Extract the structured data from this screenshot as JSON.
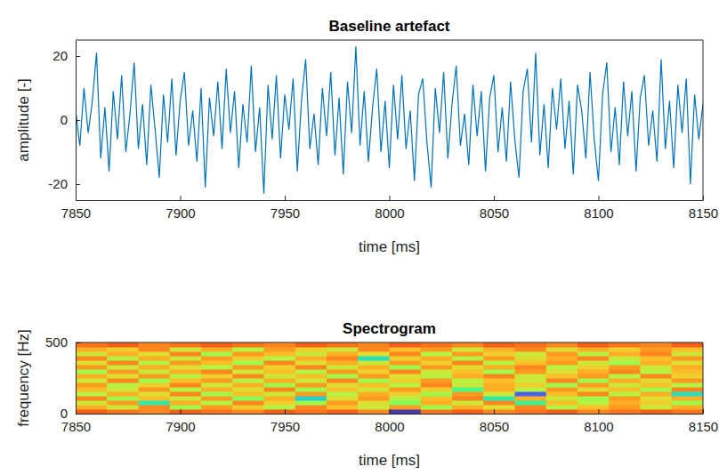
{
  "chart_data": [
    {
      "type": "line",
      "title": "Baseline artefact",
      "x_label": "time [ms]",
      "y_label": "amplitude [-]",
      "x": [
        7850,
        7852,
        7854,
        7856,
        7858,
        7860,
        7862,
        7864,
        7866,
        7868,
        7870,
        7872,
        7874,
        7876,
        7878,
        7880,
        7882,
        7884,
        7886,
        7888,
        7890,
        7892,
        7894,
        7896,
        7898,
        7900,
        7902,
        7904,
        7906,
        7908,
        7910,
        7912,
        7914,
        7916,
        7918,
        7920,
        7922,
        7924,
        7926,
        7928,
        7930,
        7932,
        7934,
        7936,
        7938,
        7940,
        7942,
        7944,
        7946,
        7948,
        7950,
        7952,
        7954,
        7956,
        7958,
        7960,
        7962,
        7964,
        7966,
        7968,
        7970,
        7972,
        7974,
        7976,
        7978,
        7980,
        7982,
        7984,
        7986,
        7988,
        7990,
        7992,
        7994,
        7996,
        7998,
        8000,
        8002,
        8004,
        8006,
        8008,
        8010,
        8012,
        8014,
        8016,
        8018,
        8020,
        8022,
        8024,
        8026,
        8028,
        8030,
        8032,
        8034,
        8036,
        8038,
        8040,
        8042,
        8044,
        8046,
        8048,
        8050,
        8052,
        8054,
        8056,
        8058,
        8060,
        8062,
        8064,
        8066,
        8068,
        8070,
        8072,
        8074,
        8076,
        8078,
        8080,
        8082,
        8084,
        8086,
        8088,
        8090,
        8092,
        8094,
        8096,
        8098,
        8100,
        8102,
        8104,
        8106,
        8108,
        8110,
        8112,
        8114,
        8116,
        8118,
        8120,
        8122,
        8124,
        8126,
        8128,
        8130,
        8132,
        8134,
        8136,
        8138,
        8140,
        8142,
        8144,
        8146,
        8148,
        8150
      ],
      "series": [
        {
          "color": "#0072bd",
          "values": [
            3,
            -8,
            10,
            -4,
            6,
            21,
            -12,
            4,
            -16,
            9,
            -6,
            14,
            -10,
            2,
            18,
            -9,
            5,
            -14,
            11,
            -3,
            -18,
            8,
            -7,
            13,
            -11,
            6,
            15,
            -8,
            3,
            -13,
            10,
            -21,
            7,
            -5,
            12,
            -9,
            16,
            -4,
            9,
            -15,
            5,
            -7,
            17,
            -10,
            4,
            -23,
            11,
            -6,
            14,
            -12,
            8,
            -3,
            13,
            -16,
            6,
            19,
            -9,
            2,
            -14,
            10,
            -5,
            15,
            -11,
            7,
            -17,
            12,
            -4,
            23,
            -8,
            9,
            -13,
            4,
            16,
            -10,
            6,
            -15,
            11,
            -6,
            14,
            -9,
            3,
            -19,
            8,
            13,
            -7,
            -21,
            10,
            -4,
            15,
            -12,
            5,
            17,
            -8,
            2,
            -14,
            11,
            -5,
            9,
            -16,
            7,
            14,
            -10,
            4,
            -13,
            12,
            -6,
            -18,
            9,
            16,
            -7,
            21,
            -11,
            5,
            -15,
            10,
            -3,
            13,
            -9,
            6,
            -17,
            11,
            3,
            -12,
            15,
            -6,
            -19,
            8,
            18,
            -10,
            4,
            -14,
            12,
            -5,
            9,
            -16,
            7,
            14,
            -8,
            3,
            -13,
            19,
            -9,
            6,
            -15,
            11,
            -4,
            13,
            -20,
            8,
            -6,
            5
          ]
        }
      ],
      "xlim": [
        7850,
        8150
      ],
      "ylim": [
        -25,
        25
      ],
      "xticks": [
        7850,
        7900,
        7950,
        8000,
        8050,
        8100,
        8150
      ],
      "yticks": [
        -20,
        0,
        20
      ],
      "grid": false
    },
    {
      "type": "heatmap",
      "title": "Spectrogram",
      "x_label": "time [ms]",
      "y_label": "frequency [Hz]",
      "x_edges": [
        7850,
        7865,
        7880,
        7895,
        7910,
        7925,
        7940,
        7955,
        7970,
        7985,
        8000,
        8015,
        8030,
        8045,
        8060,
        8075,
        8090,
        8105,
        8120,
        8135,
        8150
      ],
      "y_edges": [
        0,
        31.25,
        62.5,
        93.75,
        125,
        156.25,
        187.5,
        218.75,
        250,
        281.25,
        312.5,
        343.75,
        375,
        406.25,
        437.5,
        468.75,
        500
      ],
      "cells": [
        [
          0.88,
          0.87,
          0.86,
          0.88,
          0.87,
          0.86,
          0.88,
          0.87,
          0.88,
          0.86,
          0.62,
          0.87,
          0.88,
          0.86,
          0.87,
          0.88,
          0.86,
          0.87,
          0.88,
          0.87
        ],
        [
          0.84,
          0.8,
          0.86,
          0.78,
          0.85,
          0.82,
          0.79,
          0.86,
          0.83,
          0.8,
          0.85,
          0.78,
          0.84,
          0.81,
          0.86,
          0.79,
          0.83,
          0.85,
          0.8,
          0.84
        ],
        [
          0.8,
          0.85,
          0.72,
          0.84,
          0.79,
          0.86,
          0.82,
          0.78,
          0.85,
          0.81,
          0.77,
          0.84,
          0.8,
          0.86,
          0.73,
          0.83,
          0.79,
          0.84,
          0.82,
          0.78
        ],
        [
          0.86,
          0.78,
          0.83,
          0.8,
          0.85,
          0.77,
          0.84,
          0.7,
          0.81,
          0.85,
          0.79,
          0.83,
          0.86,
          0.72,
          0.84,
          0.8,
          0.78,
          0.85,
          0.81,
          0.84
        ],
        [
          0.79,
          0.84,
          0.81,
          0.86,
          0.78,
          0.83,
          0.8,
          0.85,
          0.79,
          0.84,
          0.82,
          0.78,
          0.85,
          0.8,
          0.64,
          0.83,
          0.86,
          0.79,
          0.84,
          0.71
        ],
        [
          0.83,
          0.8,
          0.85,
          0.79,
          0.84,
          0.81,
          0.86,
          0.78,
          0.83,
          0.8,
          0.85,
          0.82,
          0.74,
          0.84,
          0.79,
          0.85,
          0.81,
          0.83,
          0.78,
          0.86
        ],
        [
          0.85,
          0.79,
          0.82,
          0.86,
          0.8,
          0.84,
          0.78,
          0.85,
          0.81,
          0.83,
          0.79,
          0.86,
          0.8,
          0.84,
          0.82,
          0.78,
          0.85,
          0.8,
          0.83,
          0.79
        ],
        [
          0.8,
          0.86,
          0.78,
          0.83,
          0.85,
          0.79,
          0.84,
          0.8,
          0.86,
          0.78,
          0.82,
          0.85,
          0.79,
          0.83,
          0.8,
          0.86,
          0.78,
          0.84,
          0.81,
          0.85
        ],
        [
          0.84,
          0.81,
          0.85,
          0.79,
          0.82,
          0.86,
          0.8,
          0.83,
          0.78,
          0.85,
          0.81,
          0.79,
          0.84,
          0.86,
          0.8,
          0.83,
          0.85,
          0.79,
          0.86,
          0.82
        ],
        [
          0.78,
          0.85,
          0.8,
          0.84,
          0.86,
          0.8,
          0.83,
          0.79,
          0.85,
          0.82,
          0.86,
          0.8,
          0.83,
          0.78,
          0.85,
          0.81,
          0.84,
          0.86,
          0.79,
          0.83
        ],
        [
          0.85,
          0.8,
          0.84,
          0.81,
          0.79,
          0.85,
          0.82,
          0.86,
          0.8,
          0.84,
          0.78,
          0.85,
          0.81,
          0.84,
          0.86,
          0.79,
          0.82,
          0.85,
          0.8,
          0.84
        ],
        [
          0.81,
          0.86,
          0.79,
          0.85,
          0.83,
          0.78,
          0.86,
          0.81,
          0.84,
          0.8,
          0.85,
          0.82,
          0.86,
          0.79,
          0.83,
          0.85,
          0.8,
          0.78,
          0.84,
          0.81
        ],
        [
          0.86,
          0.79,
          0.84,
          0.8,
          0.85,
          0.82,
          0.79,
          0.84,
          0.86,
          0.71,
          0.82,
          0.84,
          0.79,
          0.85,
          0.81,
          0.84,
          0.86,
          0.8,
          0.83,
          0.85
        ],
        [
          0.8,
          0.84,
          0.81,
          0.86,
          0.78,
          0.85,
          0.83,
          0.8,
          0.84,
          0.81,
          0.86,
          0.79,
          0.85,
          0.82,
          0.8,
          0.85,
          0.79,
          0.84,
          0.86,
          0.8
        ],
        [
          0.84,
          0.82,
          0.86,
          0.8,
          0.84,
          0.79,
          0.85,
          0.82,
          0.8,
          0.86,
          0.83,
          0.85,
          0.8,
          0.84,
          0.86,
          0.81,
          0.84,
          0.82,
          0.85,
          0.83
        ],
        [
          0.87,
          0.88,
          0.86,
          0.87,
          0.88,
          0.87,
          0.86,
          0.88,
          0.87,
          0.86,
          0.88,
          0.87,
          0.86,
          0.88,
          0.87,
          0.86,
          0.88,
          0.87,
          0.86,
          0.88
        ]
      ],
      "clim": [
        0.6,
        0.95
      ],
      "xlim": [
        7850,
        8150
      ],
      "ylim": [
        0,
        500
      ],
      "xticks": [
        7850,
        7900,
        7950,
        8000,
        8050,
        8100,
        8150
      ],
      "yticks": [
        0,
        500
      ],
      "grid": false
    }
  ]
}
